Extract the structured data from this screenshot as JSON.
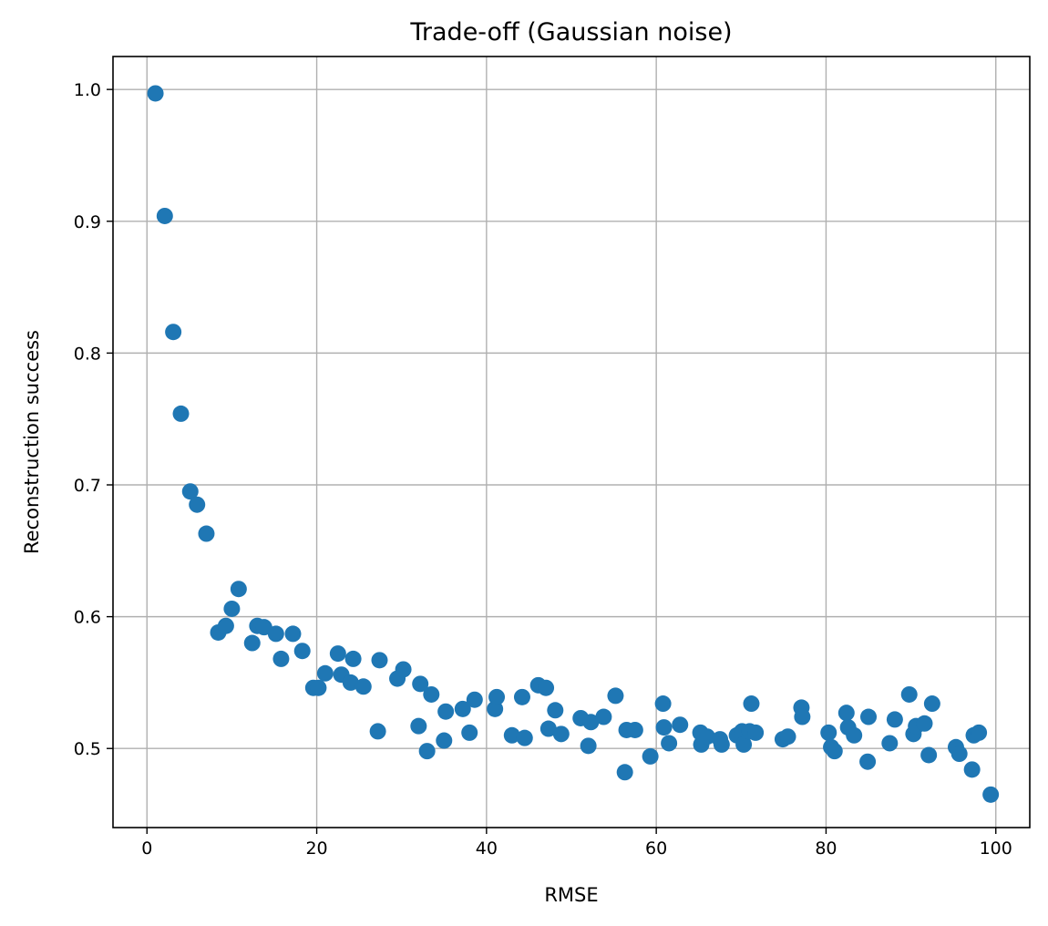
{
  "chart_data": {
    "type": "scatter",
    "title": "Trade-off (Gaussian noise)",
    "xlabel": "RMSE",
    "ylabel": "Reconstruction success",
    "xlim": [
      -4,
      104
    ],
    "ylim": [
      0.44,
      1.025
    ],
    "xticks": [
      0,
      20,
      40,
      60,
      80,
      100
    ],
    "yticks": [
      0.5,
      0.6,
      0.7,
      0.8,
      0.9,
      1.0
    ],
    "xtick_labels": [
      "0",
      "20",
      "40",
      "60",
      "80",
      "100"
    ],
    "ytick_labels": [
      "0.5",
      "0.6",
      "0.7",
      "0.8",
      "0.9",
      "1.0"
    ],
    "grid": true,
    "marker_color": "#1f77b4",
    "series": [
      {
        "x": [
          1.0,
          2.1,
          3.1,
          4.0,
          5.1,
          5.9,
          7.0,
          8.4,
          9.3,
          10.0,
          10.8,
          12.4,
          13.0,
          13.8,
          15.2,
          15.8,
          17.2,
          18.3,
          19.6,
          20.2,
          21.0,
          22.5,
          22.9,
          24.0,
          24.3,
          25.5,
          27.2,
          27.4,
          29.5,
          30.2,
          32.0,
          32.2,
          33.0,
          33.5,
          35.0,
          35.2,
          37.2,
          38.0,
          38.6,
          41.0,
          41.2,
          43.0,
          44.2,
          44.5,
          46.1,
          47.0,
          47.3,
          48.1,
          48.8,
          51.1,
          52.0,
          52.3,
          53.8,
          55.2,
          56.3,
          56.5,
          57.5,
          59.3,
          60.8,
          60.9,
          61.5,
          62.8,
          65.2,
          65.3,
          66.0,
          67.5,
          67.7,
          69.5,
          70.1,
          70.3,
          71.0,
          71.2,
          71.7,
          74.9,
          75.5,
          77.1,
          77.2,
          80.3,
          80.6,
          81.0,
          82.4,
          82.6,
          83.3,
          84.9,
          85.0,
          87.5,
          88.1,
          89.8,
          90.3,
          90.6,
          91.6,
          92.1,
          92.5,
          95.3,
          95.7,
          97.2,
          97.4,
          98.0,
          99.4
        ],
        "y": [
          0.997,
          0.904,
          0.816,
          0.754,
          0.695,
          0.685,
          0.663,
          0.588,
          0.593,
          0.606,
          0.621,
          0.58,
          0.593,
          0.592,
          0.587,
          0.568,
          0.587,
          0.574,
          0.546,
          0.546,
          0.557,
          0.572,
          0.556,
          0.55,
          0.568,
          0.547,
          0.513,
          0.567,
          0.553,
          0.56,
          0.517,
          0.549,
          0.498,
          0.541,
          0.506,
          0.528,
          0.53,
          0.512,
          0.537,
          0.53,
          0.539,
          0.51,
          0.539,
          0.508,
          0.548,
          0.546,
          0.515,
          0.529,
          0.511,
          0.523,
          0.502,
          0.52,
          0.524,
          0.54,
          0.482,
          0.514,
          0.514,
          0.494,
          0.534,
          0.516,
          0.504,
          0.518,
          0.512,
          0.503,
          0.509,
          0.507,
          0.503,
          0.51,
          0.513,
          0.503,
          0.513,
          0.534,
          0.512,
          0.507,
          0.509,
          0.531,
          0.524,
          0.512,
          0.501,
          0.498,
          0.527,
          0.516,
          0.51,
          0.49,
          0.524,
          0.504,
          0.522,
          0.541,
          0.511,
          0.517,
          0.519,
          0.495,
          0.534,
          0.501,
          0.496,
          0.484,
          0.51,
          0.512,
          0.465
        ]
      }
    ]
  }
}
